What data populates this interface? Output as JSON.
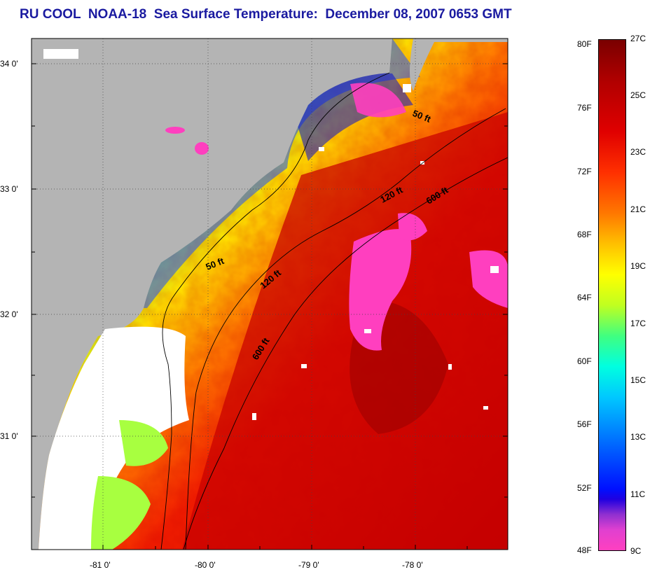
{
  "title": "RU COOL  NOAA-18  Sea Surface Temperature:  December 08, 2007 0653 GMT",
  "map": {
    "lat_ticks": [
      "34 0'",
      "33 0'",
      "32 0'",
      "31 0'"
    ],
    "lon_ticks": [
      "-81 0'",
      "-80 0'",
      "-79 0'",
      "-78 0'"
    ],
    "contour_labels": [
      "50 ft",
      "120 ft",
      "600 ft",
      "50 ft",
      "120 ft",
      "600 ft"
    ],
    "colors": {
      "land": "#b4b4b4",
      "cloud_mask": "#ffffff",
      "warm_water": "#c40000",
      "cold_water": "#ff3fbf"
    }
  },
  "colorbar": {
    "fahrenheit": [
      "80F",
      "76F",
      "72F",
      "68F",
      "64F",
      "60F",
      "56F",
      "52F",
      "48F"
    ],
    "celsius": [
      "27C",
      "25C",
      "23C",
      "21C",
      "19C",
      "17C",
      "15C",
      "13C",
      "11C",
      "9C"
    ]
  }
}
